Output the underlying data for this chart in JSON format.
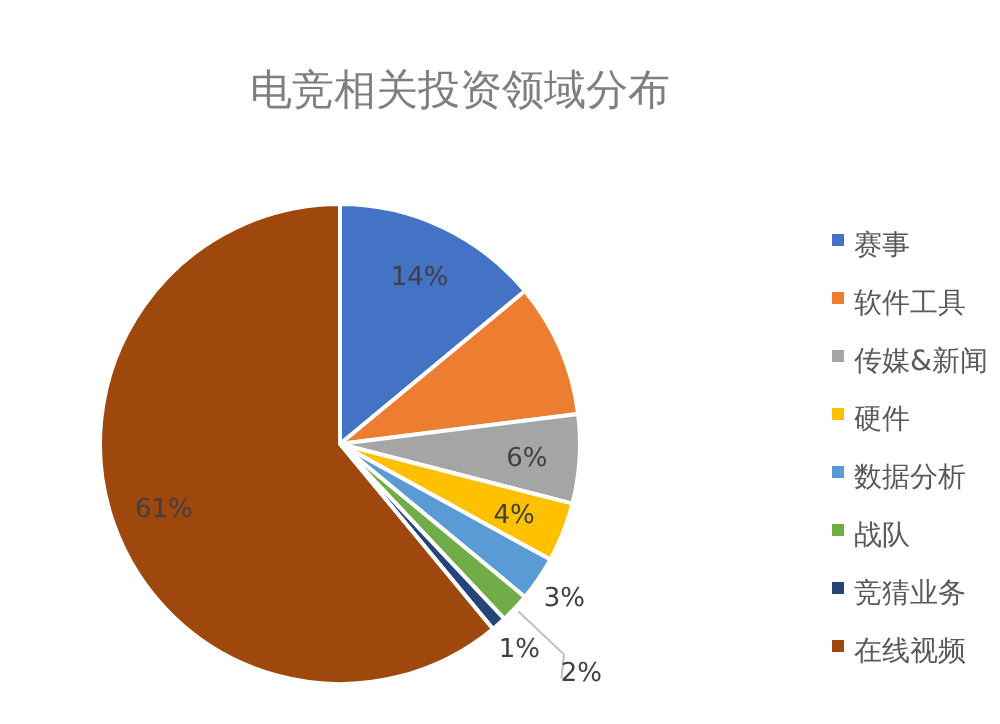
{
  "chart_data": {
    "type": "pie",
    "title": "电竞相关投资领域分布",
    "categories": [
      "赛事",
      "软件工具",
      "传媒&新闻",
      "硬件",
      "数据分析",
      "战队",
      "竞猜业务",
      "在线视频"
    ],
    "values": [
      14,
      9,
      6,
      4,
      3,
      2,
      1,
      61
    ],
    "colors": [
      "#4472c4",
      "#ed7d31",
      "#a5a5a5",
      "#ffc000",
      "#5b9bd5",
      "#70ad47",
      "#264478",
      "#9e480e"
    ],
    "value_labels": [
      "14%",
      null,
      "6%",
      "4%",
      "3%",
      "2%",
      "1%",
      "61%"
    ],
    "legend": "right"
  }
}
